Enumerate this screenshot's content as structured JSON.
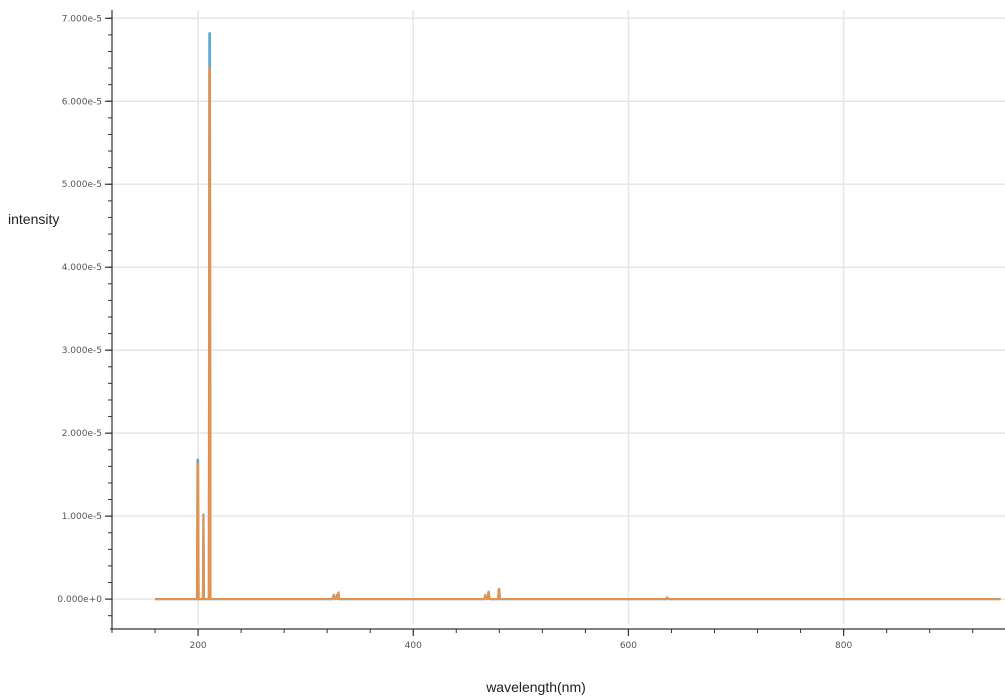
{
  "chart_data": {
    "type": "line",
    "xlabel": "wavelength(nm)",
    "ylabel": "intensity",
    "xlim": [
      120,
      950
    ],
    "ylim": [
      -3e-06,
      7.1e-05
    ],
    "grid": true,
    "legend": "none",
    "x_ticks": [
      200,
      400,
      600,
      800
    ],
    "x_tick_labels": [
      "200",
      "400",
      "600",
      "800"
    ],
    "y_ticks": [
      0,
      1e-05,
      2e-05,
      3e-05,
      4e-05,
      5e-05,
      6e-05,
      7e-05
    ],
    "y_tick_labels": [
      "0.000e+0",
      "1.000e-5",
      "2.000e-5",
      "3.000e-5",
      "4.000e-5",
      "5.000e-5",
      "6.000e-5",
      "7.000e-5"
    ],
    "colors": {
      "series_1": "#5aa9d6",
      "series_2": "#e8914a",
      "grid": "#e6e6e6",
      "axis": "#333333"
    },
    "series": [
      {
        "x": [
          160,
          198,
          199,
          199.5,
          200,
          200.5,
          201,
          202,
          203,
          204.5,
          205,
          205.5,
          206,
          209,
          210,
          210.5,
          211,
          211.5,
          212,
          215,
          230,
          260,
          300,
          325,
          326,
          327,
          328,
          329,
          330,
          330.5,
          331,
          332,
          333,
          334,
          335,
          400,
          466,
          467,
          468,
          469,
          470,
          471,
          472,
          478,
          479,
          479.5,
          480,
          480.5,
          481,
          482,
          520,
          600,
          635,
          636,
          637,
          700,
          800,
          946
        ],
        "y": [
          0,
          0,
          0,
          1.68e-05,
          1.68e-05,
          0,
          0,
          0,
          0,
          0,
          1.02e-05,
          0,
          0,
          0,
          0,
          6.82e-05,
          6.82e-05,
          0,
          0,
          0,
          0,
          0,
          0,
          0,
          5e-07,
          0,
          0,
          5e-07,
          0,
          8e-07,
          0,
          0,
          0,
          0,
          0,
          0,
          0,
          5e-07,
          0,
          0,
          9e-07,
          0,
          0,
          0,
          0,
          1.2e-06,
          1.2e-06,
          0,
          0,
          0,
          0,
          0,
          0,
          2e-07,
          0,
          0,
          0,
          0
        ]
      },
      {
        "x": [
          160,
          198,
          199,
          199.5,
          200,
          200.5,
          201,
          202,
          203,
          204.5,
          205,
          205.5,
          206,
          209,
          210,
          210.5,
          211,
          211.5,
          212,
          215,
          230,
          260,
          300,
          325,
          326,
          327,
          328,
          329,
          330,
          330.5,
          331,
          332,
          333,
          334,
          335,
          400,
          466,
          467,
          468,
          469,
          470,
          471,
          472,
          478,
          479,
          479.5,
          480,
          480.5,
          481,
          482,
          520,
          600,
          635,
          636,
          637,
          700,
          800,
          946
        ],
        "y": [
          0,
          0,
          0,
          1.63e-05,
          1.63e-05,
          0,
          0,
          0,
          0,
          0,
          1e-05,
          0,
          0,
          0,
          0,
          6.4e-05,
          6.4e-05,
          0,
          0,
          0,
          0,
          0,
          0,
          0,
          5e-07,
          0,
          0,
          5e-07,
          0,
          8e-07,
          0,
          0,
          0,
          0,
          0,
          0,
          0,
          5e-07,
          0,
          0,
          9e-07,
          0,
          0,
          0,
          0,
          1.2e-06,
          1.2e-06,
          0,
          0,
          0,
          0,
          0,
          0,
          2e-07,
          0,
          0,
          0,
          0
        ]
      }
    ]
  }
}
